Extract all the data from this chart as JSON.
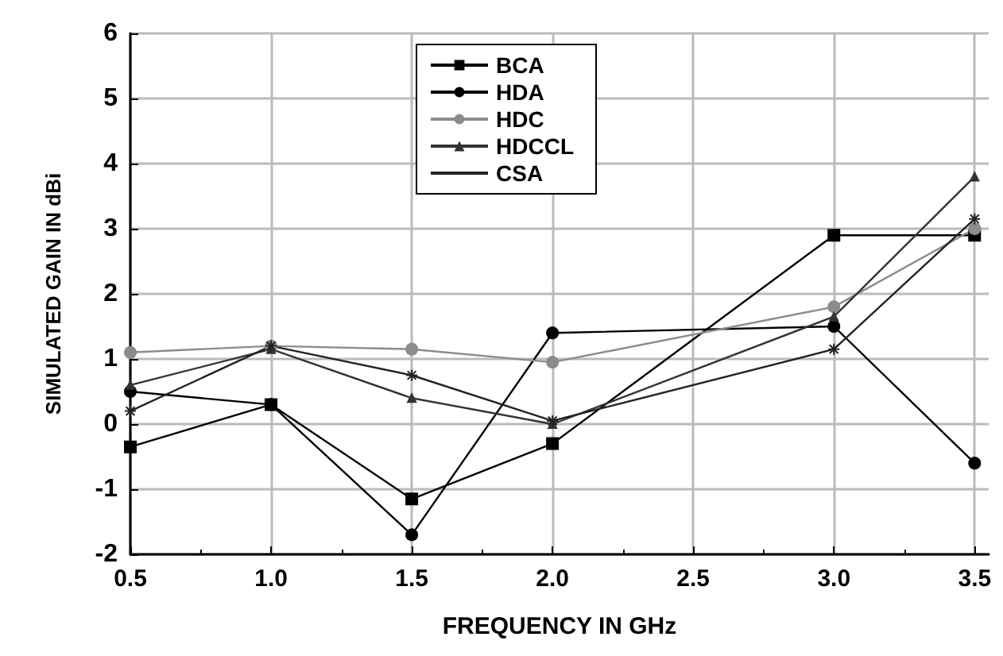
{
  "chart_data": {
    "type": "line",
    "xlabel": "FREQUENCY IN GHz",
    "ylabel": "SIMULATED GAIN IN dBi",
    "x": [
      0.5,
      1.0,
      1.5,
      2.0,
      3.0,
      3.5
    ],
    "series": [
      {
        "name": "BCA",
        "color": "#000000",
        "marker": "square",
        "values": [
          -0.35,
          0.3,
          -1.15,
          -0.3,
          2.9,
          2.9
        ]
      },
      {
        "name": "HDA",
        "color": "#000000",
        "marker": "circle",
        "values": [
          0.5,
          0.3,
          -1.7,
          1.4,
          1.5,
          -0.6
        ]
      },
      {
        "name": "HDC",
        "color": "#8c8c8c",
        "marker": "circle",
        "values": [
          1.1,
          1.2,
          1.15,
          0.95,
          1.8,
          3.0
        ]
      },
      {
        "name": "HDCCL",
        "color": "#333333",
        "marker": "triangle",
        "values": [
          0.6,
          1.15,
          0.4,
          0.0,
          1.65,
          3.8
        ]
      },
      {
        "name": "CSA",
        "color": "#222222",
        "marker": "cross",
        "values": [
          0.2,
          1.2,
          0.75,
          0.05,
          1.15,
          3.15
        ]
      }
    ],
    "xlim": [
      0.5,
      3.55
    ],
    "xticks": [
      0.5,
      {
        "value": 1,
        "label": "1.0"
      },
      1.5,
      {
        "value": 2,
        "label": "2.0"
      },
      2.5,
      {
        "value": 3,
        "label": "3.0"
      },
      3.5
    ],
    "ylim": [
      -2,
      6
    ],
    "yticks": [
      -2,
      -1,
      0,
      1,
      2,
      3,
      4,
      5,
      6
    ],
    "grid": true,
    "legend": "top",
    "line_style": "solid"
  }
}
